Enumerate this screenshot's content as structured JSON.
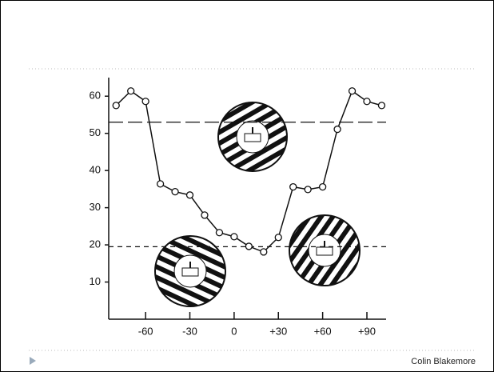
{
  "chart_data": {
    "type": "line",
    "x": [
      -80,
      -70,
      -60,
      -50,
      -40,
      -30,
      -20,
      -10,
      0,
      10,
      20,
      30,
      40,
      50,
      60,
      70,
      80,
      90,
      100
    ],
    "series": [
      {
        "color": "#111111",
        "values": [
          57.5,
          61.4,
          58.6,
          36.4,
          34.3,
          33.4,
          28,
          23.3,
          22.2,
          19.6,
          18.1,
          22,
          35.6,
          34.9,
          35.6,
          51.1,
          61.4,
          58.6,
          57.5
        ]
      }
    ],
    "xlim": [
      -85,
      103
    ],
    "ylim": [
      0,
      65
    ],
    "xticks": [
      -60,
      -30,
      0,
      {
        "value": 30,
        "label": "+30"
      },
      {
        "value": 60,
        "label": "+60"
      },
      {
        "value": 90,
        "label": "+90"
      }
    ],
    "yticks": [
      10,
      20,
      30,
      40,
      50,
      60
    ],
    "reference_lines": [
      {
        "value": 53,
        "style": "long-dash"
      },
      {
        "value": 19.5,
        "style": "dashed"
      }
    ]
  },
  "footer": {
    "credit": "Colin Blakemore"
  }
}
